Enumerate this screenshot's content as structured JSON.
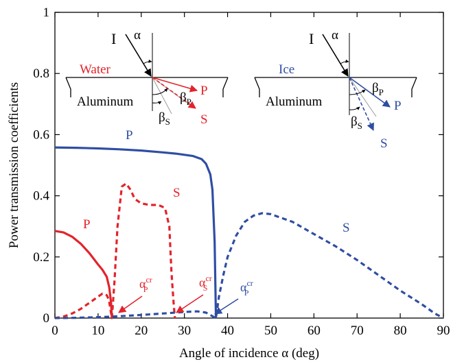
{
  "colors": {
    "water": "#e3232b",
    "ice": "#2f4ea3",
    "axis": "#000000",
    "ray": "#9a9a9a"
  },
  "chart_data": {
    "type": "line",
    "xlabel": "Angle of incidence α (deg)",
    "ylabel": "Power transmission coefficients",
    "xlim": [
      0,
      90
    ],
    "ylim": [
      0,
      1
    ],
    "xticks": [
      "0",
      "10",
      "20",
      "30",
      "40",
      "50",
      "60",
      "70",
      "80",
      "90"
    ],
    "yticks": [
      "0",
      "0.2",
      "0.4",
      "0.6",
      "0.8",
      "1"
    ],
    "grid": false,
    "series": [
      {
        "name": "P",
        "medium": "Water",
        "style": "solid",
        "color": "#e3232b",
        "x": [
          0,
          2,
          4,
          6,
          8,
          10,
          11,
          12,
          12.6,
          13.0,
          13.2
        ],
        "y": [
          0.285,
          0.28,
          0.266,
          0.243,
          0.212,
          0.175,
          0.158,
          0.135,
          0.1,
          0.05,
          0.0
        ]
      },
      {
        "name": "S",
        "medium": "Water",
        "style": "dashed",
        "color": "#e3232b",
        "x": [
          0,
          2,
          4,
          6,
          8,
          10,
          11,
          12,
          12.5,
          13.2,
          13.8,
          14.5,
          15.5,
          16.5,
          17.5,
          18.5,
          20,
          22,
          24,
          25.5,
          26.5,
          27.0,
          27.5,
          27.8
        ],
        "y": [
          0.0,
          0.005,
          0.015,
          0.03,
          0.05,
          0.07,
          0.08,
          0.075,
          0.06,
          0.0,
          0.12,
          0.3,
          0.43,
          0.44,
          0.42,
          0.39,
          0.375,
          0.37,
          0.37,
          0.36,
          0.3,
          0.15,
          0.05,
          0.0
        ]
      },
      {
        "name": "P",
        "medium": "Ice",
        "style": "solid",
        "color": "#2f4ea3",
        "x": [
          0,
          5,
          10,
          15,
          20,
          25,
          28,
          30,
          32,
          34,
          35,
          36,
          36.5,
          37.0,
          37.3
        ],
        "y": [
          0.558,
          0.557,
          0.555,
          0.552,
          0.548,
          0.542,
          0.538,
          0.534,
          0.53,
          0.52,
          0.505,
          0.47,
          0.42,
          0.25,
          0.0
        ]
      },
      {
        "name": "S",
        "medium": "Ice",
        "style": "dashed",
        "color": "#2f4ea3",
        "x": [
          0,
          5,
          10,
          15,
          20,
          25,
          28,
          30,
          33,
          35,
          36,
          37,
          37.3,
          38,
          39,
          40,
          42,
          44,
          46,
          48,
          50,
          55,
          60,
          65,
          70,
          75,
          80,
          85,
          88,
          90
        ],
        "y": [
          0.0,
          0.001,
          0.003,
          0.006,
          0.01,
          0.015,
          0.018,
          0.02,
          0.022,
          0.018,
          0.01,
          0.002,
          0.0,
          0.07,
          0.14,
          0.2,
          0.27,
          0.315,
          0.335,
          0.343,
          0.34,
          0.315,
          0.275,
          0.235,
          0.19,
          0.14,
          0.09,
          0.045,
          0.015,
          0.0
        ]
      }
    ],
    "annotations": [
      {
        "text": "α",
        "sup": "cr",
        "sub": "P",
        "color": "#e3232b",
        "points_to": [
          13.2,
          0.0
        ]
      },
      {
        "text": "α",
        "sup": "cr",
        "sub": "S",
        "color": "#e3232b",
        "points_to": [
          27.8,
          0.0
        ]
      },
      {
        "text": "α",
        "sup": "cr",
        "sub": "P",
        "color": "#2f4ea3",
        "points_to": [
          37.3,
          0.0
        ]
      }
    ]
  },
  "insets": {
    "water": {
      "medium": "Water",
      "solid": "Aluminum",
      "incident": "α",
      "beta_p": "β",
      "beta_s": "β",
      "sub_p": "P",
      "sub_s": "S",
      "wave_p": "P",
      "wave_s": "S"
    },
    "ice": {
      "medium": "Ice",
      "solid": "Aluminum",
      "incident": "α",
      "beta_p": "β",
      "beta_s": "β",
      "sub_p": "P",
      "sub_s": "S",
      "wave_p": "P",
      "wave_s": "S"
    }
  }
}
